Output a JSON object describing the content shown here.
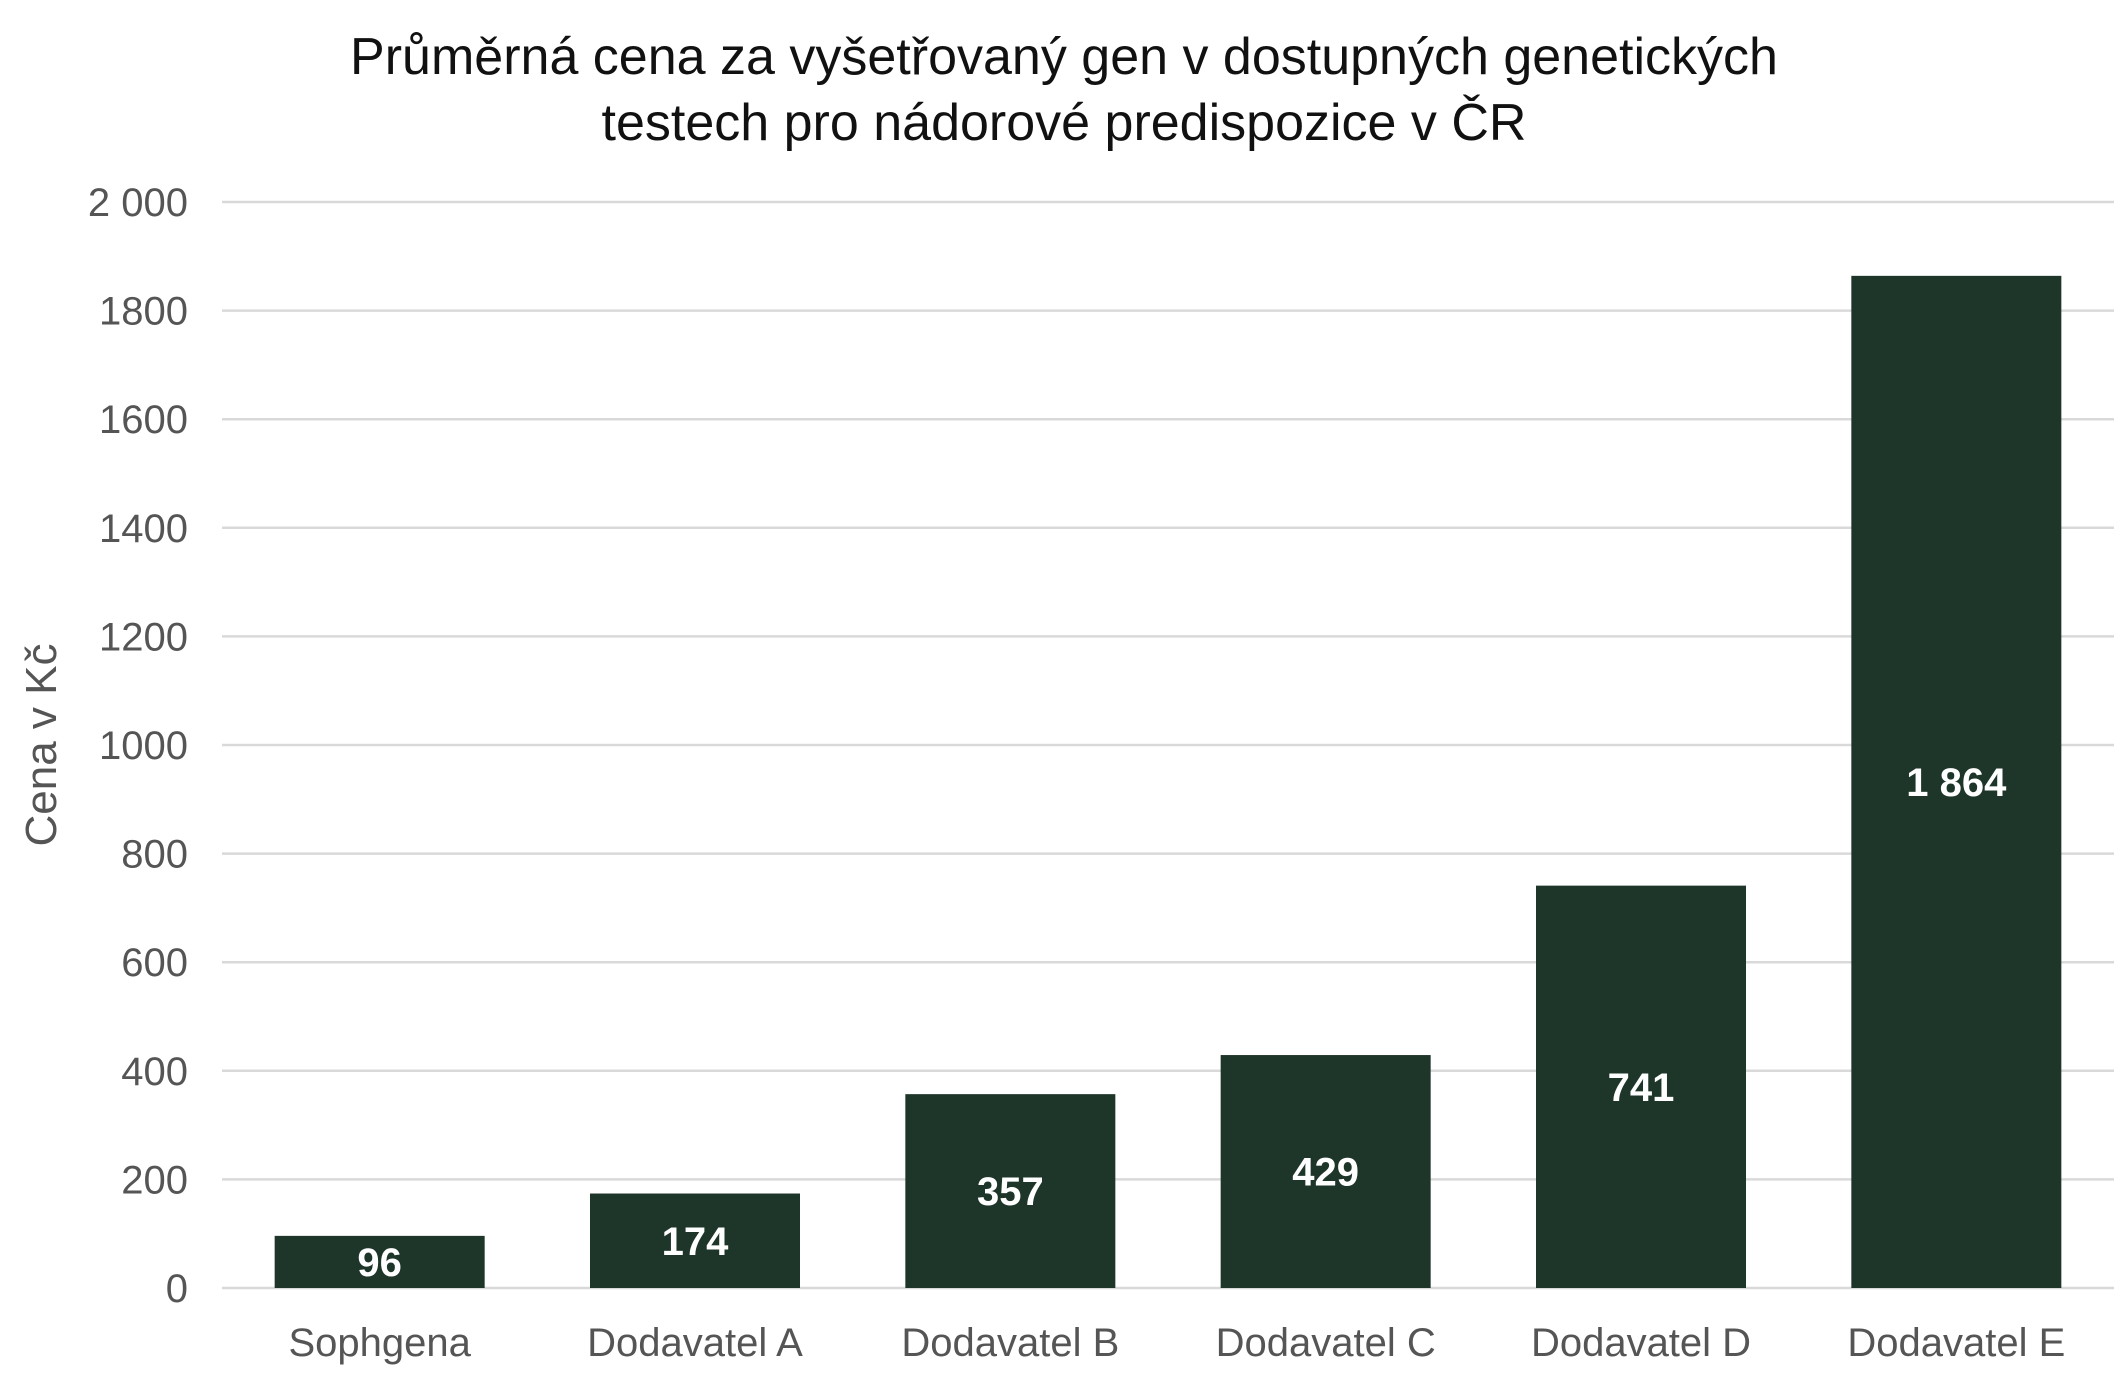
{
  "chart_data": {
    "type": "bar",
    "title_lines": [
      "Průměrná cena za vyšetřovaný gen v dostupných genetických",
      "testech pro nádorové predispozice v ČR"
    ],
    "xlabel": "",
    "ylabel": "Cena v Kč",
    "ylim": [
      0,
      2000
    ],
    "y_ticks": [
      0,
      200,
      400,
      600,
      800,
      1000,
      1200,
      1400,
      1600,
      1800,
      2000
    ],
    "y_tick_labels": [
      "0",
      "200",
      "400",
      "600",
      "800",
      "1000",
      "1200",
      "1400",
      "1600",
      "1800",
      "2 000"
    ],
    "categories": [
      "Sophgena",
      "Dodavatel A",
      "Dodavatel B",
      "Dodavatel C",
      "Dodavatel D",
      "Dodavatel E"
    ],
    "values": [
      96,
      174,
      357,
      429,
      741,
      1864
    ],
    "data_labels": [
      "96",
      "174",
      "357",
      "429",
      "741",
      "1 864"
    ],
    "grid": true,
    "legend": "none",
    "colors": {
      "bar": "#1e3529",
      "grid": "#d9d9d9",
      "text": "#555555",
      "title": "#111111",
      "data_label": "#ffffff"
    }
  }
}
